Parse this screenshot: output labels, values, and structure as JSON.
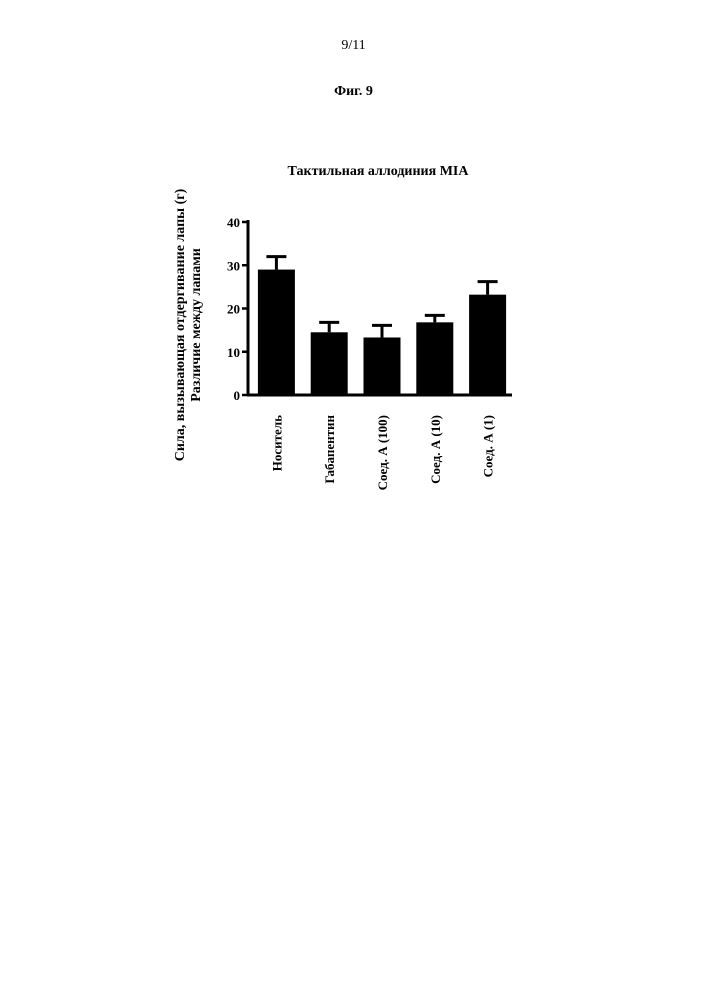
{
  "page": {
    "number": "9/11",
    "figure_label": "Фиг. 9"
  },
  "chart_data": {
    "type": "bar",
    "title": "Тактильная аллодиния MIA",
    "ylabel_line1": "Сила, вызывающая отдергивание лапы (г)",
    "ylabel_line2": "Различие между лапами",
    "xlabel": "",
    "categories": [
      "Носитель",
      "Габапентин",
      "Соед. А (100)",
      "Соед. А (10)",
      "Соед. А (1)"
    ],
    "values": [
      29,
      14.5,
      13.3,
      16.8,
      23.2
    ],
    "errors": [
      3,
      2.3,
      2.8,
      1.6,
      3
    ],
    "ylim": [
      0,
      40
    ],
    "yticks": [
      0,
      10,
      20,
      30,
      40
    ],
    "grid": false,
    "bar_color": "#000000"
  }
}
